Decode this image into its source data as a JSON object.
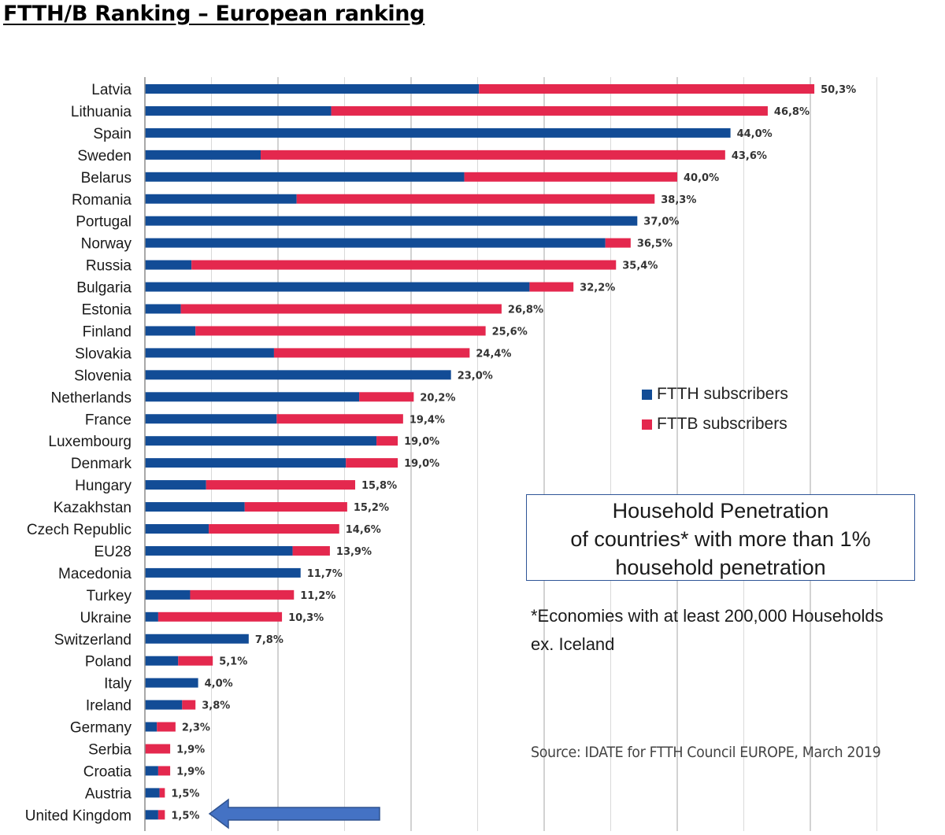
{
  "page": {
    "title": "FTTH/B Ranking – European ranking"
  },
  "legend": {
    "ftth_label": "FTTH subscribers",
    "fttb_label": "FTTB subscribers"
  },
  "annotation_box": {
    "line1": "Household Penetration",
    "line2": "of countries* with more than 1%",
    "line3": "household penetration"
  },
  "footnote": {
    "line1": "*Economies with at least 200,000 Households",
    "line2": "ex. Iceland"
  },
  "source": "Source: IDATE for FTTH Council EUROPE, March 2019",
  "colors": {
    "ftth": "#124c96",
    "fttb": "#e4284e",
    "arrow": "#4472c4",
    "grid": "#d9d9d9"
  },
  "chart_data": {
    "type": "bar",
    "orientation": "horizontal",
    "stacked": true,
    "categories": [
      "Latvia",
      "Lithuania",
      "Spain",
      "Sweden",
      "Belarus",
      "Romania",
      "Portugal",
      "Norway",
      "Russia",
      "Bulgaria",
      "Estonia",
      "Finland",
      "Slovakia",
      "Slovenia",
      "Netherlands",
      "France",
      "Luxembourg",
      "Denmark",
      "Hungary",
      "Kazakhstan",
      "Czech Republic",
      "EU28",
      "Macedonia",
      "Turkey",
      "Ukraine",
      "Switzerland",
      "Poland",
      "Italy",
      "Ireland",
      "Germany",
      "Serbia",
      "Croatia",
      "Austria",
      "United Kingdom"
    ],
    "series": [
      {
        "name": "FTTH subscribers",
        "values": [
          25.1,
          14.0,
          44.0,
          8.7,
          24.0,
          11.4,
          37.0,
          34.6,
          3.5,
          28.9,
          2.7,
          3.8,
          9.7,
          23.0,
          16.1,
          9.9,
          17.4,
          15.1,
          4.6,
          7.5,
          4.8,
          11.1,
          11.7,
          3.4,
          1.0,
          7.8,
          2.5,
          4.0,
          2.8,
          0.9,
          0.0,
          1.0,
          1.1,
          1.0
        ]
      },
      {
        "name": "FTTB subscribers",
        "values": [
          25.2,
          32.8,
          0.0,
          34.9,
          16.0,
          26.9,
          0.0,
          1.9,
          31.9,
          3.3,
          24.1,
          21.8,
          14.7,
          0.0,
          4.1,
          9.5,
          1.6,
          3.9,
          11.2,
          7.7,
          9.8,
          2.8,
          0.0,
          7.8,
          9.3,
          0.0,
          2.6,
          0.0,
          1.0,
          1.4,
          1.9,
          0.9,
          0.4,
          0.5
        ]
      }
    ],
    "totals": [
      50.3,
      46.8,
      44.0,
      43.6,
      40.0,
      38.3,
      37.0,
      36.5,
      35.4,
      32.2,
      26.8,
      25.6,
      24.4,
      23.0,
      20.2,
      19.4,
      19.0,
      19.0,
      15.8,
      15.2,
      14.6,
      13.9,
      11.7,
      11.2,
      10.3,
      7.8,
      5.1,
      4.0,
      3.8,
      2.3,
      1.9,
      1.9,
      1.5,
      1.5
    ],
    "data_labels": [
      "50,3%",
      "46,8%",
      "44,0%",
      "43,6%",
      "40,0%",
      "38,3%",
      "37,0%",
      "36,5%",
      "35,4%",
      "32,2%",
      "26,8%",
      "25,6%",
      "24,4%",
      "23,0%",
      "20,2%",
      "19,4%",
      "19,0%",
      "19,0%",
      "15,8%",
      "15,2%",
      "14,6%",
      "13,9%",
      "11,7%",
      "11,2%",
      "10,3%",
      "7,8%",
      "5,1%",
      "4,0%",
      "3,8%",
      "2,3%",
      "1,9%",
      "1,9%",
      "1,5%",
      "1,5%"
    ],
    "xlim": [
      0,
      55
    ],
    "grid": true,
    "highlight": {
      "category": "United Kingdom",
      "marker": "arrow"
    }
  }
}
